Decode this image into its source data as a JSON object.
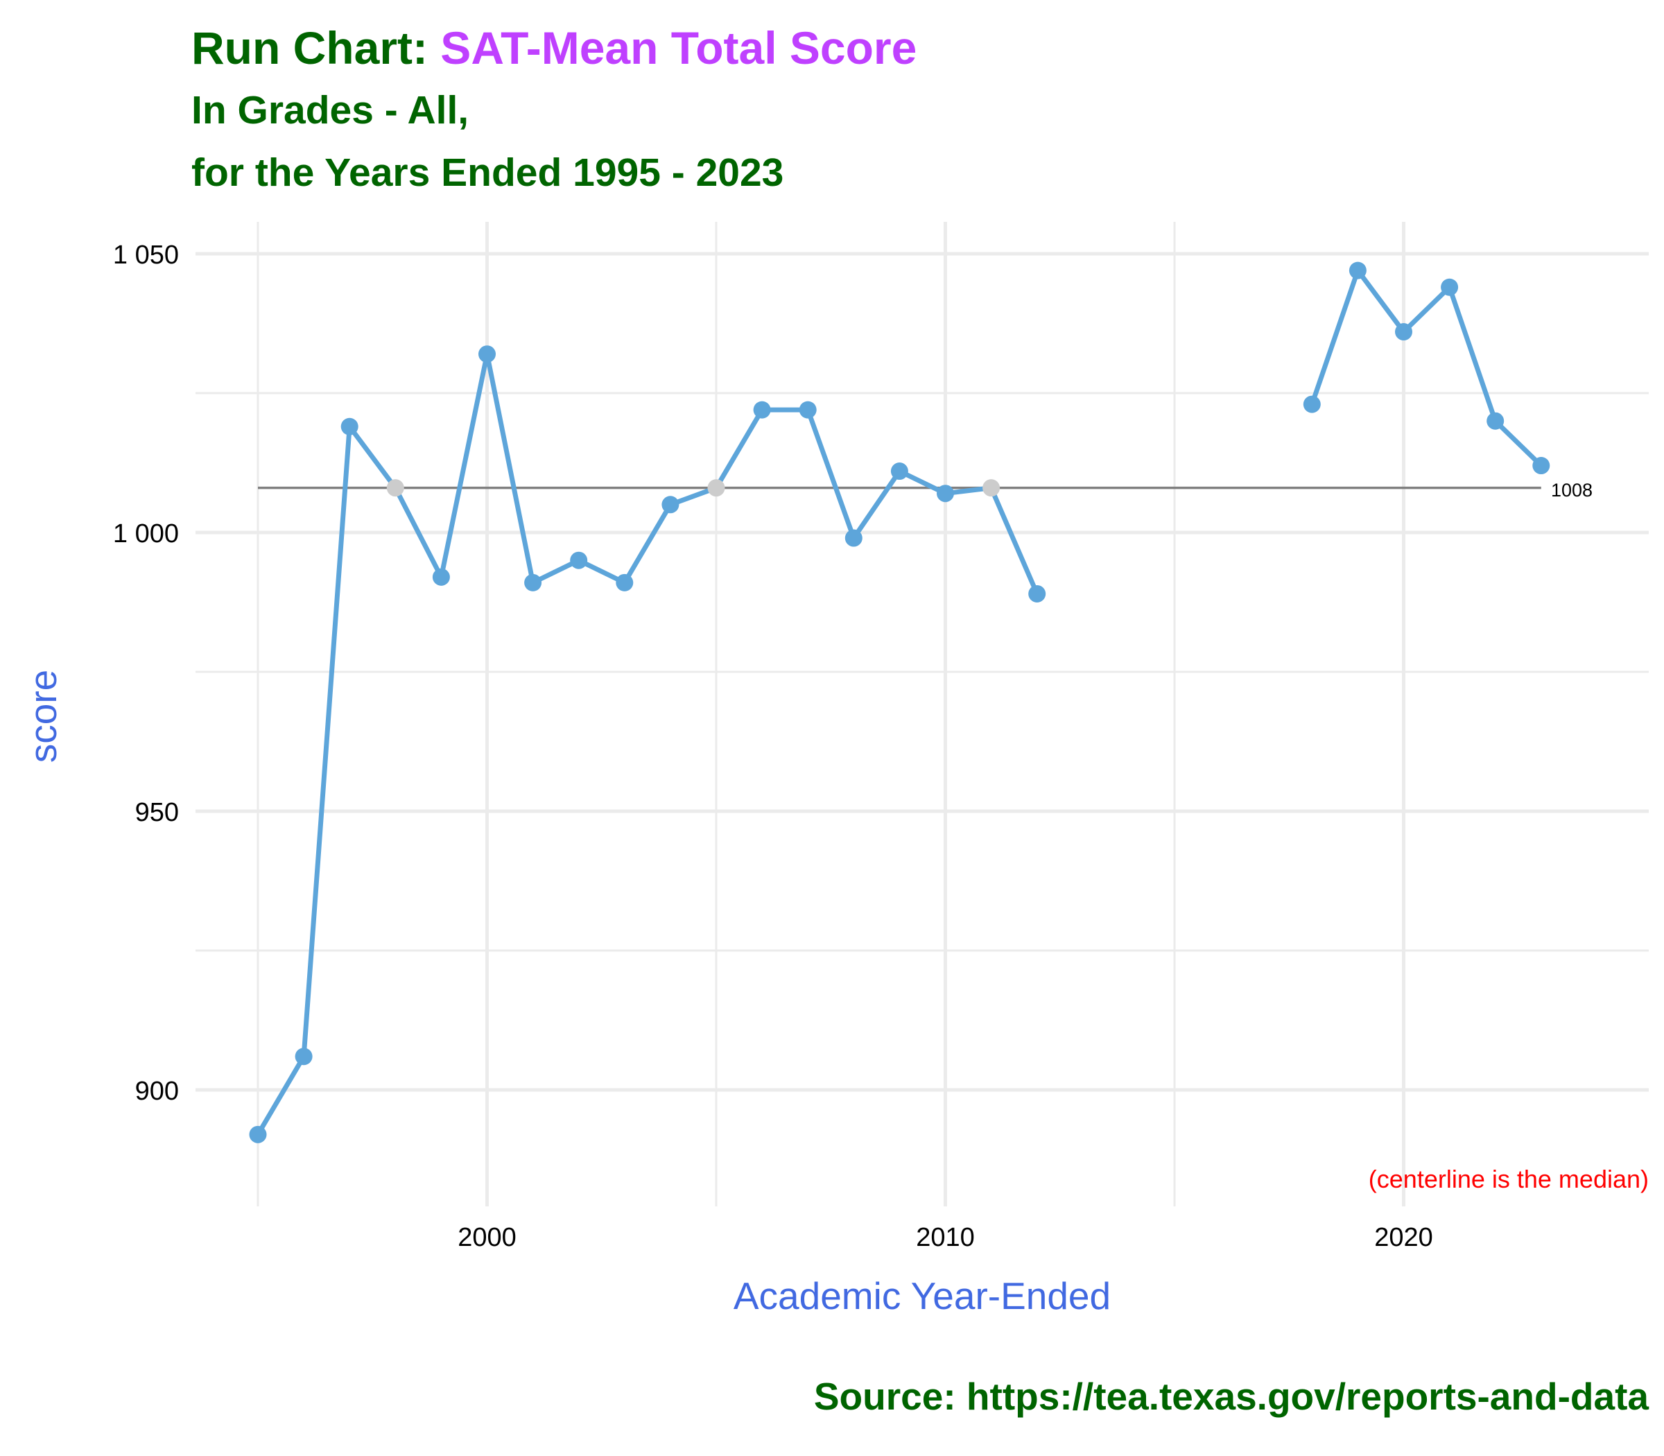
{
  "colors": {
    "title_main": "#006400",
    "title_highlight": "#BF40FF",
    "axis_title": "#4169E1",
    "line": "#5DA5DA",
    "point": "#5DA5DA",
    "point_on_median": "#CCCCCC",
    "median_line": "#808080",
    "note": "#FF0000",
    "caption": "#006400",
    "grid": "#EBEBEB"
  },
  "header": {
    "title_prefix": "Run Chart: ",
    "title_highlight": "SAT-Mean Total Score",
    "subtitle_line1": "In Grades - All,",
    "subtitle_line2": "for the Years Ended 1995 - 2023"
  },
  "note": "(centerline is the median)",
  "caption": "Source:  https://tea.texas.gov/reports-and-data",
  "chart_data": {
    "type": "line",
    "title": "Run Chart: SAT-Mean Total Score",
    "subtitle": "In Grades - All, for the Years Ended 1995 - 2023",
    "xlabel": "Academic Year-Ended",
    "ylabel": "score",
    "xlim": [
      1994,
      2025
    ],
    "ylim": [
      880,
      1056
    ],
    "x_ticks": [
      2000,
      2010,
      2020
    ],
    "x_tick_labels": [
      "2000",
      "2010",
      "2020"
    ],
    "y_ticks": [
      900,
      950,
      1000,
      1050
    ],
    "y_tick_labels": [
      "900",
      "950",
      "1 000",
      "1 050"
    ],
    "grid": true,
    "legend": "none",
    "median": 1008,
    "median_label": "1008",
    "segments": [
      {
        "x": [
          1995,
          1996,
          1997,
          1998,
          1999,
          2000,
          2001,
          2002,
          2003,
          2004,
          2005,
          2006,
          2007,
          2008,
          2009,
          2010,
          2011,
          2012
        ],
        "y": [
          892,
          906,
          1019,
          1008,
          992,
          1032,
          991,
          995,
          991,
          1005,
          1008,
          1022,
          1022,
          999,
          1011,
          1007,
          1008,
          989
        ]
      },
      {
        "x": [
          2018,
          2019,
          2020,
          2021,
          2022,
          2023
        ],
        "y": [
          1023,
          1047,
          1036,
          1044,
          1020,
          1012
        ]
      }
    ]
  }
}
